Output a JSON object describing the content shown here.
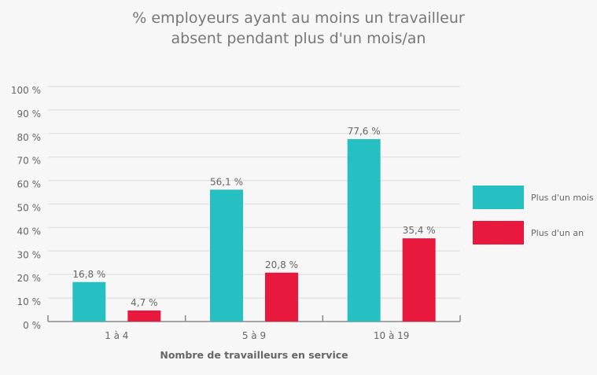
{
  "chart_data": {
    "type": "bar",
    "title_lines": [
      "% employeurs ayant au moins un travailleur",
      "absent pendant plus d'un mois/an"
    ],
    "xlabel": "Nombre de travailleurs en service",
    "ylabel": "",
    "categories": [
      "1 à 4",
      "5 à 9",
      "10 à 19"
    ],
    "series": [
      {
        "name": "Plus d'un mois",
        "color": "#26bfc2",
        "values": [
          16.8,
          56.1,
          77.6
        ],
        "labels": [
          "16,8 %",
          "56,1 %",
          "77,6 %"
        ]
      },
      {
        "name": "Plus d'un an",
        "color": "#e8193c",
        "values": [
          4.7,
          20.8,
          35.4
        ],
        "labels": [
          "4,7 %",
          "20,8 %",
          "35,4 %"
        ]
      }
    ],
    "ylim": [
      0,
      100
    ],
    "yticks": [
      "0 %",
      "10 %",
      "20 %",
      "30 %",
      "40 %",
      "50 %",
      "60 %",
      "70 %",
      "80 %",
      "90 %",
      "100 %"
    ],
    "grid": true,
    "legend": "right"
  }
}
